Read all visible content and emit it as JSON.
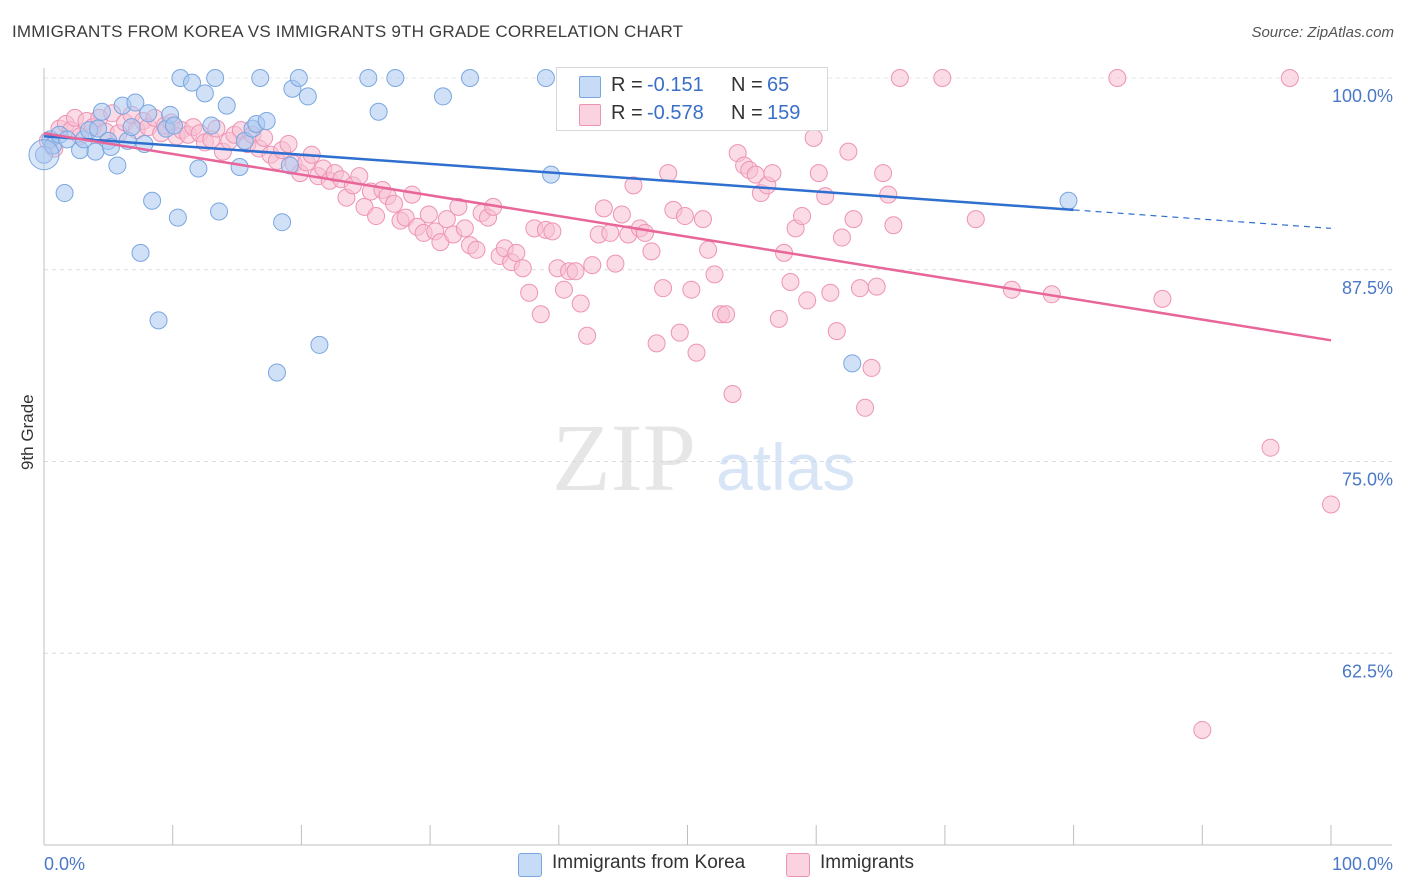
{
  "header": {
    "title": "IMMIGRANTS FROM KOREA VS IMMIGRANTS 9TH GRADE CORRELATION CHART",
    "source": "Source: ZipAtlas.com"
  },
  "watermark": {
    "zip": "ZIP",
    "atlas": "atlas"
  },
  "stats": [
    {
      "r_label": "R =",
      "r_value": "-0.151",
      "n_label": "N =",
      "n_value": "65",
      "color": "#a9c8f0",
      "border": "#7aa6e0"
    },
    {
      "r_label": "R =",
      "r_value": "-0.578",
      "n_label": "N =",
      "n_value": "159",
      "color": "#f7bfd2",
      "border": "#ee93b4"
    }
  ],
  "legend": [
    {
      "label": "Immigrants from Korea",
      "color": "#a9c8f0",
      "border": "#7aa6e0"
    },
    {
      "label": "Immigrants",
      "color": "#f7bfd2",
      "border": "#ee93b4"
    }
  ],
  "chart_data": {
    "type": "scatter",
    "title": "IMMIGRANTS FROM KOREA VS IMMIGRANTS 9TH GRADE CORRELATION CHART",
    "xlabel": "",
    "ylabel": "9th Grade",
    "xlim": [
      0,
      100
    ],
    "ylim": [
      50,
      100
    ],
    "x_tick_labels": [
      "0.0%",
      "100.0%"
    ],
    "y_ticks": [
      62.5,
      75.0,
      87.5,
      100.0
    ],
    "y_tick_labels": [
      "62.5%",
      "75.0%",
      "87.5%",
      "100.0%"
    ],
    "grid": true,
    "legend_position": "bottom-center",
    "series": [
      {
        "name": "Immigrants from Korea",
        "color": "#7aa6e0",
        "fill": "#a9c8f0",
        "trend": {
          "x": [
            0,
            80,
            100
          ],
          "y": [
            96.2,
            91.4,
            90.2
          ]
        },
        "points": [
          [
            0,
            95.0
          ],
          [
            0.5,
            96.0
          ],
          [
            0.7,
            95.6
          ],
          [
            1.2,
            96.3
          ],
          [
            1.6,
            92.5
          ],
          [
            1.8,
            96.0
          ],
          [
            2.8,
            95.3
          ],
          [
            3.1,
            96.0
          ],
          [
            3.5,
            96.6
          ],
          [
            4.0,
            95.2
          ],
          [
            4.2,
            96.7
          ],
          [
            4.5,
            97.8
          ],
          [
            5.0,
            95.9
          ],
          [
            5.2,
            95.5
          ],
          [
            5.7,
            94.3
          ],
          [
            6.1,
            98.2
          ],
          [
            6.5,
            95.9
          ],
          [
            6.8,
            96.8
          ],
          [
            7.1,
            98.4
          ],
          [
            7.5,
            88.6
          ],
          [
            7.8,
            95.7
          ],
          [
            8.1,
            97.7
          ],
          [
            8.4,
            92.0
          ],
          [
            8.9,
            84.2
          ],
          [
            9.5,
            96.7
          ],
          [
            9.8,
            97.6
          ],
          [
            10.1,
            96.9
          ],
          [
            10.4,
            90.9
          ],
          [
            10.6,
            100.0
          ],
          [
            11.5,
            99.7
          ],
          [
            12.0,
            94.1
          ],
          [
            12.5,
            99.0
          ],
          [
            13.0,
            96.9
          ],
          [
            13.3,
            100.0
          ],
          [
            13.6,
            91.3
          ],
          [
            14.2,
            98.2
          ],
          [
            15.2,
            94.2
          ],
          [
            15.6,
            95.9
          ],
          [
            16.2,
            96.7
          ],
          [
            16.5,
            97.0
          ],
          [
            16.8,
            100.0
          ],
          [
            17.3,
            97.2
          ],
          [
            18.1,
            80.8
          ],
          [
            18.5,
            90.6
          ],
          [
            19.1,
            94.3
          ],
          [
            19.3,
            99.3
          ],
          [
            19.8,
            100.0
          ],
          [
            20.5,
            98.8
          ],
          [
            21.4,
            82.6
          ],
          [
            25.2,
            100.0
          ],
          [
            26.0,
            97.8
          ],
          [
            27.3,
            100.0
          ],
          [
            31.0,
            98.8
          ],
          [
            33.1,
            100.0
          ],
          [
            39.0,
            100.0
          ],
          [
            39.4,
            93.7
          ],
          [
            62.8,
            81.4
          ],
          [
            79.6,
            92.0
          ]
        ]
      },
      {
        "name": "Immigrants",
        "color": "#ee93b4",
        "fill": "#f7bfd2",
        "trend": {
          "x": [
            0,
            100
          ],
          "y": [
            96.4,
            82.9
          ]
        },
        "points": [
          [
            0.3,
            95.9
          ],
          [
            0.8,
            95.4
          ],
          [
            1.2,
            96.7
          ],
          [
            1.7,
            97.0
          ],
          [
            2.1,
            96.6
          ],
          [
            2.4,
            97.4
          ],
          [
            2.8,
            96.2
          ],
          [
            3.3,
            97.2
          ],
          [
            3.8,
            96.8
          ],
          [
            4.3,
            97.4
          ],
          [
            4.8,
            96.5
          ],
          [
            5.3,
            97.7
          ],
          [
            5.8,
            96.4
          ],
          [
            6.3,
            97.1
          ],
          [
            6.8,
            97.6
          ],
          [
            7.2,
            96.6
          ],
          [
            7.7,
            97.2
          ],
          [
            8.1,
            96.8
          ],
          [
            8.6,
            97.4
          ],
          [
            9.1,
            96.4
          ],
          [
            9.4,
            96.9
          ],
          [
            9.9,
            97.1
          ],
          [
            10.3,
            96.2
          ],
          [
            10.7,
            96.6
          ],
          [
            11.2,
            96.3
          ],
          [
            11.6,
            96.8
          ],
          [
            12.1,
            96.4
          ],
          [
            12.5,
            95.8
          ],
          [
            13.0,
            96.0
          ],
          [
            13.4,
            96.7
          ],
          [
            13.9,
            95.2
          ],
          [
            14.4,
            95.9
          ],
          [
            14.8,
            96.3
          ],
          [
            15.3,
            96.6
          ],
          [
            15.8,
            95.7
          ],
          [
            16.2,
            96.3
          ],
          [
            16.7,
            95.4
          ],
          [
            17.1,
            96.1
          ],
          [
            17.6,
            95.0
          ],
          [
            18.1,
            94.6
          ],
          [
            18.5,
            95.3
          ],
          [
            19.0,
            95.7
          ],
          [
            19.4,
            94.4
          ],
          [
            19.9,
            93.8
          ],
          [
            20.4,
            94.5
          ],
          [
            20.8,
            95.0
          ],
          [
            21.3,
            93.6
          ],
          [
            21.7,
            94.1
          ],
          [
            22.2,
            93.3
          ],
          [
            22.6,
            93.8
          ],
          [
            23.1,
            93.4
          ],
          [
            23.5,
            92.2
          ],
          [
            24.0,
            93.0
          ],
          [
            24.5,
            93.6
          ],
          [
            24.9,
            91.6
          ],
          [
            25.4,
            92.6
          ],
          [
            25.8,
            91.0
          ],
          [
            26.3,
            92.7
          ],
          [
            26.7,
            92.3
          ],
          [
            27.2,
            91.8
          ],
          [
            27.7,
            90.7
          ],
          [
            28.1,
            90.9
          ],
          [
            28.6,
            92.4
          ],
          [
            29.0,
            90.3
          ],
          [
            29.5,
            89.9
          ],
          [
            29.9,
            91.1
          ],
          [
            30.4,
            90.0
          ],
          [
            30.8,
            89.3
          ],
          [
            31.3,
            90.8
          ],
          [
            31.8,
            89.8
          ],
          [
            32.2,
            91.6
          ],
          [
            32.7,
            90.2
          ],
          [
            33.1,
            89.1
          ],
          [
            33.6,
            88.8
          ],
          [
            34.0,
            91.2
          ],
          [
            34.5,
            90.9
          ],
          [
            34.9,
            91.6
          ],
          [
            35.4,
            88.4
          ],
          [
            35.8,
            88.9
          ],
          [
            36.3,
            88.0
          ],
          [
            36.7,
            88.6
          ],
          [
            37.2,
            87.6
          ],
          [
            37.7,
            86.0
          ],
          [
            38.1,
            90.2
          ],
          [
            38.6,
            84.6
          ],
          [
            39.0,
            90.1
          ],
          [
            39.5,
            90.0
          ],
          [
            39.9,
            87.6
          ],
          [
            40.4,
            86.2
          ],
          [
            40.8,
            87.4
          ],
          [
            41.3,
            87.4
          ],
          [
            41.7,
            85.3
          ],
          [
            42.2,
            83.2
          ],
          [
            42.6,
            87.8
          ],
          [
            43.1,
            89.8
          ],
          [
            43.5,
            91.5
          ],
          [
            44.0,
            89.9
          ],
          [
            44.4,
            87.9
          ],
          [
            44.9,
            91.1
          ],
          [
            45.4,
            89.8
          ],
          [
            45.8,
            93.0
          ],
          [
            46.3,
            90.2
          ],
          [
            46.7,
            89.9
          ],
          [
            47.2,
            88.7
          ],
          [
            47.6,
            82.7
          ],
          [
            48.1,
            86.3
          ],
          [
            48.5,
            93.8
          ],
          [
            48.9,
            91.4
          ],
          [
            49.4,
            83.4
          ],
          [
            49.8,
            91.0
          ],
          [
            50.3,
            86.2
          ],
          [
            50.7,
            82.1
          ],
          [
            51.2,
            90.8
          ],
          [
            51.6,
            88.8
          ],
          [
            52.1,
            87.2
          ],
          [
            52.6,
            84.6
          ],
          [
            53.0,
            84.6
          ],
          [
            53.5,
            79.4
          ],
          [
            53.9,
            95.1
          ],
          [
            54.4,
            94.3
          ],
          [
            54.8,
            94.0
          ],
          [
            55.3,
            93.7
          ],
          [
            55.7,
            92.5
          ],
          [
            56.2,
            93.0
          ],
          [
            56.6,
            93.8
          ],
          [
            57.1,
            84.3
          ],
          [
            57.5,
            88.6
          ],
          [
            58.0,
            86.7
          ],
          [
            58.4,
            90.2
          ],
          [
            58.9,
            91.0
          ],
          [
            59.3,
            85.5
          ],
          [
            59.8,
            96.1
          ],
          [
            60.2,
            93.8
          ],
          [
            60.7,
            92.3
          ],
          [
            61.1,
            86.0
          ],
          [
            61.6,
            83.5
          ],
          [
            62.0,
            89.6
          ],
          [
            62.5,
            95.2
          ],
          [
            62.9,
            90.8
          ],
          [
            63.4,
            86.3
          ],
          [
            63.8,
            78.5
          ],
          [
            64.3,
            81.1
          ],
          [
            64.7,
            86.4
          ],
          [
            65.2,
            93.8
          ],
          [
            65.6,
            92.4
          ],
          [
            66.0,
            90.4
          ],
          [
            66.5,
            100.0
          ],
          [
            69.8,
            100.0
          ],
          [
            72.4,
            90.8
          ],
          [
            75.2,
            86.2
          ],
          [
            78.3,
            85.9
          ],
          [
            83.4,
            100.0
          ],
          [
            86.9,
            85.6
          ],
          [
            90.0,
            57.5
          ],
          [
            95.3,
            75.9
          ],
          [
            96.8,
            100.0
          ],
          [
            100.0,
            72.2
          ]
        ]
      }
    ]
  }
}
